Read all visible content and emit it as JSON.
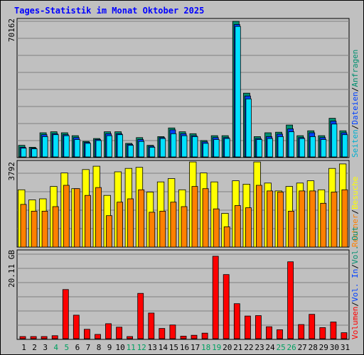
{
  "title": "Tages-Statistik im Monat Oktober 2025",
  "colors": {
    "bg": "#c0c0c0",
    "panel_bg": "#c0c0c0",
    "grid": "#808080",
    "anfragen": "#008f6f",
    "dateien": "#0040ff",
    "seiten": "#00e0ff",
    "besuche": "#ffff00",
    "rechner": "#ff8000",
    "kbytes": "#ff0000",
    "weekend": "#00a060",
    "weekday": "#000000",
    "title": "#0000ff"
  },
  "chart_data": [
    {
      "type": "bar",
      "name": "top-panel",
      "ylabel_max": "70162",
      "ylim": [
        0,
        70162
      ],
      "legend": [
        "Seiten",
        "/",
        "Dateien",
        "/",
        "Anfragen"
      ],
      "legend_colors": [
        "#00b0d0",
        "#000000",
        "#0040ff",
        "#000000",
        "#008f6f"
      ],
      "categories": [
        "1",
        "2",
        "3",
        "4",
        "5",
        "6",
        "7",
        "8",
        "9",
        "10",
        "11",
        "12",
        "13",
        "14",
        "15",
        "16",
        "17",
        "18",
        "19",
        "20",
        "21",
        "22",
        "23",
        "24",
        "25",
        "26",
        "27",
        "28",
        "29",
        "30",
        "31"
      ],
      "series": [
        {
          "name": "Anfragen",
          "values": [
            6000,
            5000,
            12500,
            13000,
            12500,
            11000,
            8000,
            9500,
            13000,
            13000,
            7000,
            10000,
            6000,
            10500,
            15000,
            13000,
            12000,
            8500,
            11000,
            11000,
            70162,
            33000,
            10500,
            12500,
            12800,
            16500,
            11000,
            13500,
            11000,
            20000,
            13500
          ]
        },
        {
          "name": "Dateien",
          "values": [
            5000,
            4500,
            11500,
            12000,
            11500,
            10000,
            7500,
            9000,
            12000,
            12000,
            6500,
            9000,
            5500,
            10000,
            14000,
            12000,
            11000,
            7800,
            10000,
            10000,
            68500,
            31500,
            9500,
            10500,
            11800,
            14500,
            10000,
            12500,
            10000,
            18500,
            12500
          ]
        },
        {
          "name": "Seiten",
          "values": [
            4500,
            4200,
            10500,
            11500,
            11000,
            9000,
            7000,
            8500,
            11000,
            11500,
            6000,
            8000,
            5000,
            9500,
            12000,
            11000,
            10500,
            7000,
            9000,
            9500,
            67500,
            30000,
            9000,
            9500,
            10500,
            13000,
            9500,
            10500,
            9000,
            17000,
            11500
          ]
        }
      ]
    },
    {
      "type": "bar",
      "name": "middle-panel",
      "ylabel_max": "3792",
      "ylim": [
        0,
        3792
      ],
      "legend": [
        "Rechner",
        "/",
        "Besuche"
      ],
      "legend_colors": [
        "#ff8000",
        "#000000",
        "#ffff00"
      ],
      "categories": [
        "1",
        "2",
        "3",
        "4",
        "5",
        "6",
        "7",
        "8",
        "9",
        "10",
        "11",
        "12",
        "13",
        "14",
        "15",
        "16",
        "17",
        "18",
        "19",
        "20",
        "21",
        "22",
        "23",
        "24",
        "25",
        "26",
        "27",
        "28",
        "29",
        "30",
        "31"
      ],
      "series": [
        {
          "name": "Besuche",
          "values": [
            2550,
            2100,
            2150,
            2700,
            3300,
            2600,
            3450,
            3600,
            2300,
            3350,
            3500,
            3550,
            2450,
            2900,
            3050,
            2550,
            3790,
            3300,
            2900,
            1500,
            2950,
            2800,
            3790,
            2850,
            2500,
            2700,
            2850,
            2950,
            2550,
            3500,
            3700
          ]
        },
        {
          "name": "Rechner",
          "values": [
            1900,
            1600,
            1600,
            1800,
            2750,
            2600,
            2300,
            2650,
            1400,
            2000,
            2150,
            2550,
            1550,
            1600,
            2000,
            1800,
            2700,
            2600,
            1700,
            900,
            1850,
            1750,
            2750,
            2500,
            2450,
            1600,
            2500,
            2500,
            1950,
            2450,
            2550
          ]
        }
      ]
    },
    {
      "type": "bar",
      "name": "bottom-panel",
      "ylabel_max": "20.11 GB",
      "ylim": [
        0,
        20.11
      ],
      "legend": [
        "Volumen",
        "/",
        "Vol. In",
        "/",
        "Vol. Out"
      ],
      "legend_colors": [
        "#ff0000",
        "#000000",
        "#0040ff",
        "#000000",
        "#008f6f"
      ],
      "categories": [
        "1",
        "2",
        "3",
        "4",
        "5",
        "6",
        "7",
        "8",
        "9",
        "10",
        "11",
        "12",
        "13",
        "14",
        "15",
        "16",
        "17",
        "18",
        "19",
        "20",
        "21",
        "22",
        "23",
        "24",
        "25",
        "26",
        "27",
        "28",
        "29",
        "30",
        "31"
      ],
      "series": [
        {
          "name": "Volumen",
          "values": [
            0.5,
            0.5,
            0.5,
            0.7,
            11.5,
            5.5,
            2.2,
            1.0,
            3.5,
            2.7,
            0.5,
            10.6,
            6.0,
            2.4,
            3.2,
            0.6,
            0.8,
            1.3,
            19.3,
            15.0,
            8.2,
            5.3,
            5.4,
            2.8,
            2.1,
            18.0,
            3.3,
            5.7,
            2.6,
            3.9,
            1.4
          ]
        }
      ]
    }
  ],
  "x_labels": [
    "1",
    "2",
    "3",
    "4",
    "5",
    "6",
    "7",
    "8",
    "9",
    "10",
    "11",
    "12",
    "13",
    "14",
    "15",
    "16",
    "17",
    "18",
    "19",
    "20",
    "21",
    "22",
    "23",
    "24",
    "25",
    "26",
    "27",
    "28",
    "29",
    "30",
    "31"
  ],
  "weekend_days": [
    4,
    5,
    11,
    12,
    18,
    19,
    25,
    26
  ]
}
